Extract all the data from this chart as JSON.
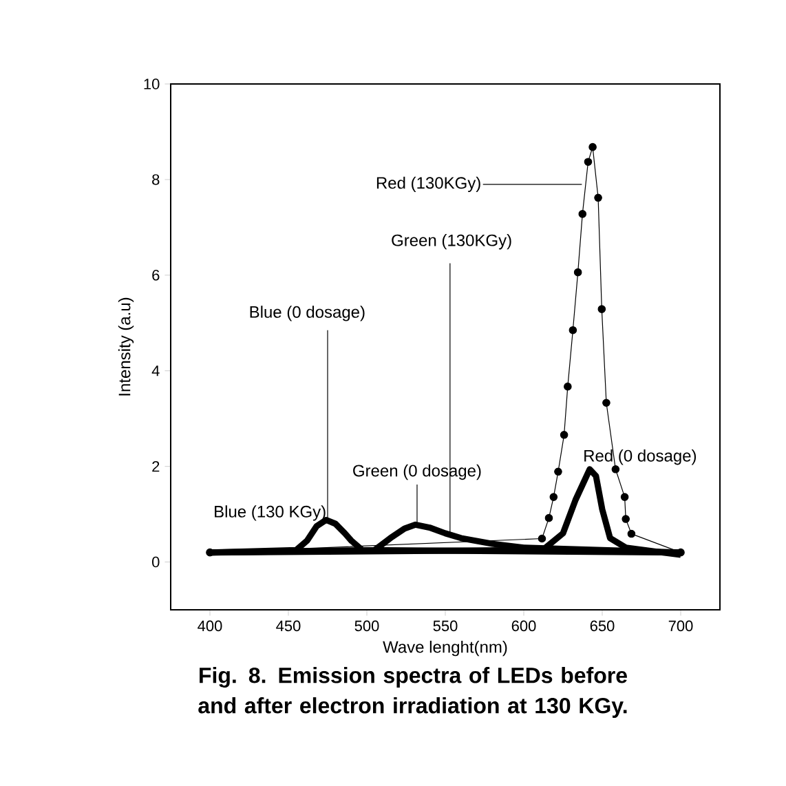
{
  "chart_data": {
    "type": "line",
    "xlabel": "Wave lenght(nm)",
    "ylabel": "Intensity (a.u)",
    "xlim": [
      375,
      725
    ],
    "ylim": [
      -1,
      10
    ],
    "xticks": [
      400,
      450,
      500,
      550,
      600,
      650,
      700
    ],
    "yticks": [
      0,
      2,
      4,
      6,
      8,
      10
    ],
    "grid": false,
    "series": [
      {
        "color": "#000000",
        "x": [
          400,
          455,
          462,
          468,
          474,
          480,
          486,
          490,
          497,
          700
        ],
        "values": [
          0.2,
          0.25,
          0.45,
          0.75,
          0.88,
          0.8,
          0.6,
          0.45,
          0.25,
          0.2
        ]
      },
      {
        "color": "#000000",
        "x": [
          400,
          505,
          515,
          524,
          531,
          540,
          550,
          560,
          580,
          600,
          700
        ],
        "values": [
          0.2,
          0.25,
          0.5,
          0.7,
          0.78,
          0.72,
          0.6,
          0.5,
          0.38,
          0.3,
          0.2
        ]
      },
      {
        "color": "#000000",
        "x": [
          400,
          612,
          625,
          633,
          642,
          646,
          650,
          655,
          665,
          700
        ],
        "values": [
          0.2,
          0.25,
          0.6,
          1.3,
          1.94,
          1.8,
          1.1,
          0.5,
          0.3,
          0.15
        ]
      },
      {
        "color": "#000000",
        "marker": "circle",
        "x": [
          400,
          611.6,
          616,
          619,
          621.9,
          625.7,
          628,
          631.3,
          634.5,
          637.4,
          641,
          643.9,
          647.4,
          649.7,
          652.6,
          658.5,
          664.3,
          665,
          668.6,
          700
        ],
        "values": [
          0.2,
          0.49,
          0.92,
          1.36,
          1.89,
          2.66,
          3.67,
          4.85,
          6.06,
          7.28,
          8.37,
          8.68,
          7.62,
          5.29,
          3.33,
          1.94,
          1.36,
          0.9,
          0.59,
          0.2
        ]
      }
    ],
    "annotations": [
      {
        "text": "Red (130KGy)",
        "x": 637,
        "y": 7.9
      },
      {
        "text": "Green (130KGy)",
        "x": 553,
        "y": 0.6
      },
      {
        "text": "Blue (0 dosage)",
        "x": 475,
        "y": 0.88
      },
      {
        "text": "Blue (130 KGy)",
        "x": 470,
        "y": 0.8
      },
      {
        "text": "Green (0 dosage)",
        "x": 532,
        "y": 0.78
      },
      {
        "text": "Red (0 dosage)",
        "x": 642,
        "y": 1.94
      },
      "Fig. 8.  Emission spectra of LEDs before and after electron irradiation at 130 KGy."
    ]
  }
}
